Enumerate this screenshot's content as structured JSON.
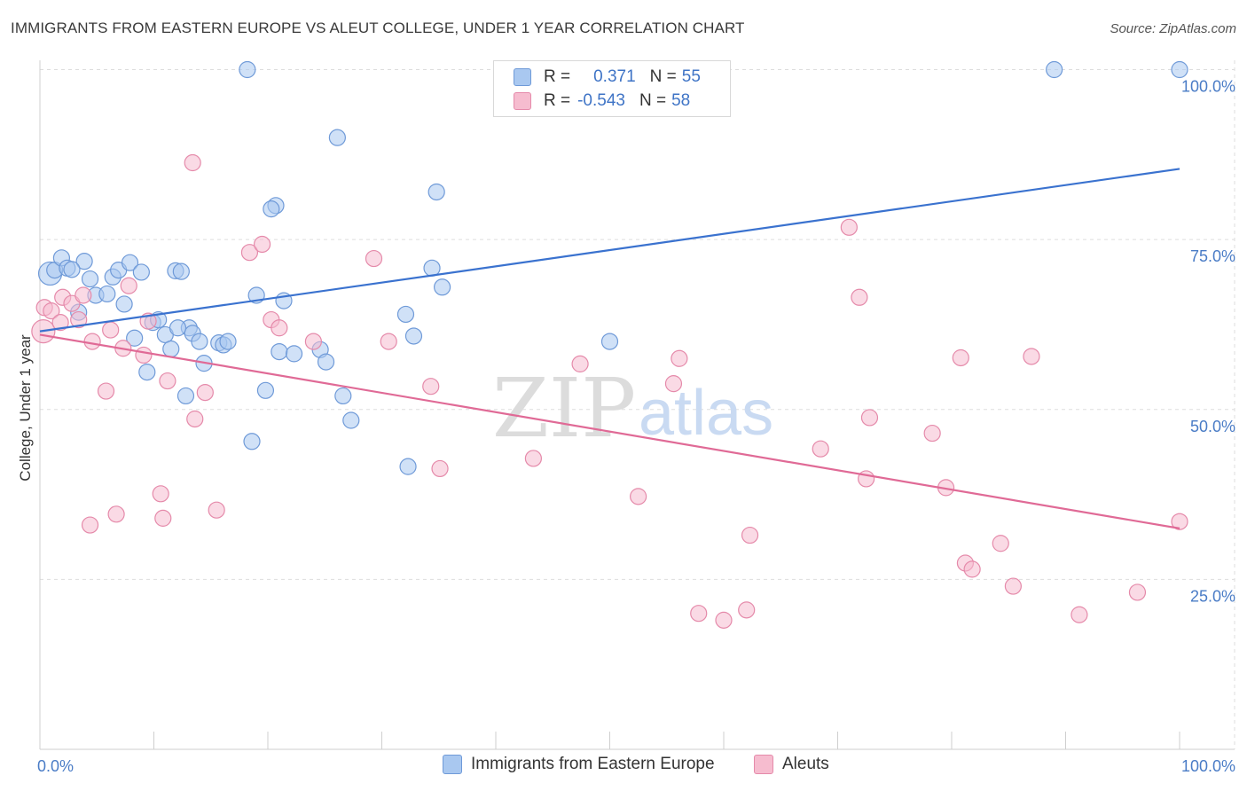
{
  "header": {
    "title": "IMMIGRANTS FROM EASTERN EUROPE VS ALEUT COLLEGE, UNDER 1 YEAR CORRELATION CHART",
    "source": "Source: ZipAtlas.com"
  },
  "watermark": {
    "zip": "ZIP",
    "atlas": "atlas"
  },
  "legend_stats": [
    {
      "r_label": "R =",
      "r_value": "0.371",
      "n_label": "N =",
      "n_value": "55"
    },
    {
      "r_label": "R =",
      "r_value": "-0.543",
      "n_label": "N =",
      "n_value": "58"
    }
  ],
  "colors": {
    "blue_fill": "#a9c8f0",
    "blue_stroke": "#6f9ad8",
    "blue_line": "#3a72cf",
    "pink_fill": "#f6bccf",
    "pink_stroke": "#e58aaa",
    "pink_line": "#e06a96",
    "grid": "#dddddd",
    "axis_text": "#4a7cc6"
  },
  "chart_data": {
    "type": "scatter",
    "title": "IMMIGRANTS FROM EASTERN EUROPE VS ALEUT COLLEGE, UNDER 1 YEAR CORRELATION CHART",
    "xlabel": "",
    "ylabel": "College, Under 1 year",
    "xlim": [
      0,
      100
    ],
    "ylim": [
      0,
      102
    ],
    "x_ticks": [
      "0.0%",
      "100.0%"
    ],
    "y_ticks": [
      {
        "value": 25,
        "label": "25.0%"
      },
      {
        "value": 50,
        "label": "50.0%"
      },
      {
        "value": 75,
        "label": "75.0%"
      },
      {
        "value": 100,
        "label": "100.0%"
      }
    ],
    "grid": true,
    "legend_position": "bottom",
    "series": [
      {
        "name": "Immigrants from Eastern Europe",
        "color": "#a9c8f0",
        "trend": {
          "x": [
            0,
            100
          ],
          "y": [
            61.5,
            85.4
          ]
        },
        "points": [
          {
            "x": 0.9,
            "y": 70.0,
            "big": true
          },
          {
            "x": 1.3,
            "y": 70.5
          },
          {
            "x": 1.9,
            "y": 72.3
          },
          {
            "x": 2.4,
            "y": 70.8
          },
          {
            "x": 3.4,
            "y": 64.3
          },
          {
            "x": 3.9,
            "y": 71.8
          },
          {
            "x": 4.4,
            "y": 69.2
          },
          {
            "x": 4.9,
            "y": 66.8
          },
          {
            "x": 5.9,
            "y": 67.0
          },
          {
            "x": 6.4,
            "y": 69.5
          },
          {
            "x": 6.9,
            "y": 70.5
          },
          {
            "x": 7.4,
            "y": 65.5
          },
          {
            "x": 7.9,
            "y": 71.6
          },
          {
            "x": 8.3,
            "y": 60.5
          },
          {
            "x": 8.9,
            "y": 70.2
          },
          {
            "x": 9.4,
            "y": 55.5
          },
          {
            "x": 9.9,
            "y": 62.8
          },
          {
            "x": 10.4,
            "y": 63.2
          },
          {
            "x": 11.0,
            "y": 61.0
          },
          {
            "x": 11.5,
            "y": 58.9
          },
          {
            "x": 11.9,
            "y": 70.4
          },
          {
            "x": 12.4,
            "y": 70.3
          },
          {
            "x": 12.8,
            "y": 52.0
          },
          {
            "x": 13.1,
            "y": 62.0
          },
          {
            "x": 13.4,
            "y": 61.2
          },
          {
            "x": 14.0,
            "y": 60.0
          },
          {
            "x": 14.4,
            "y": 56.8
          },
          {
            "x": 15.7,
            "y": 59.8
          },
          {
            "x": 16.1,
            "y": 59.5
          },
          {
            "x": 16.5,
            "y": 60.0
          },
          {
            "x": 18.2,
            "y": 100.0
          },
          {
            "x": 18.6,
            "y": 45.3
          },
          {
            "x": 19.0,
            "y": 66.8
          },
          {
            "x": 19.8,
            "y": 52.8
          },
          {
            "x": 20.7,
            "y": 80.0
          },
          {
            "x": 21.0,
            "y": 58.5
          },
          {
            "x": 21.4,
            "y": 66.0
          },
          {
            "x": 22.3,
            "y": 58.2
          },
          {
            "x": 24.6,
            "y": 58.8
          },
          {
            "x": 25.1,
            "y": 57.0
          },
          {
            "x": 26.1,
            "y": 90.0
          },
          {
            "x": 26.6,
            "y": 52.0
          },
          {
            "x": 27.3,
            "y": 48.4
          },
          {
            "x": 32.1,
            "y": 64.0
          },
          {
            "x": 32.3,
            "y": 41.6
          },
          {
            "x": 32.8,
            "y": 60.8
          },
          {
            "x": 34.4,
            "y": 70.8
          },
          {
            "x": 34.8,
            "y": 82.0
          },
          {
            "x": 35.3,
            "y": 68.0
          },
          {
            "x": 50.0,
            "y": 60.0
          },
          {
            "x": 89.0,
            "y": 100.0
          },
          {
            "x": 100.0,
            "y": 100.0
          },
          {
            "x": 2.8,
            "y": 70.6
          },
          {
            "x": 12.1,
            "y": 62.0
          },
          {
            "x": 20.3,
            "y": 79.5
          }
        ]
      },
      {
        "name": "Aleuts",
        "color": "#f6bccf",
        "trend": {
          "x": [
            0,
            100
          ],
          "y": [
            61.0,
            32.5
          ]
        },
        "points": [
          {
            "x": 0.3,
            "y": 61.5,
            "big": true
          },
          {
            "x": 0.4,
            "y": 65.0
          },
          {
            "x": 1.0,
            "y": 64.5
          },
          {
            "x": 1.8,
            "y": 62.8
          },
          {
            "x": 2.0,
            "y": 66.5
          },
          {
            "x": 2.8,
            "y": 65.6
          },
          {
            "x": 3.4,
            "y": 63.2
          },
          {
            "x": 3.8,
            "y": 66.8
          },
          {
            "x": 4.4,
            "y": 33.0
          },
          {
            "x": 4.6,
            "y": 60.0
          },
          {
            "x": 5.8,
            "y": 52.7
          },
          {
            "x": 6.2,
            "y": 61.7
          },
          {
            "x": 6.7,
            "y": 34.6
          },
          {
            "x": 7.3,
            "y": 59.0
          },
          {
            "x": 7.8,
            "y": 68.2
          },
          {
            "x": 9.1,
            "y": 58.0
          },
          {
            "x": 9.5,
            "y": 63.0
          },
          {
            "x": 10.6,
            "y": 37.6
          },
          {
            "x": 10.8,
            "y": 34.0
          },
          {
            "x": 11.2,
            "y": 54.2
          },
          {
            "x": 13.4,
            "y": 86.3
          },
          {
            "x": 13.6,
            "y": 48.6
          },
          {
            "x": 14.5,
            "y": 52.5
          },
          {
            "x": 15.5,
            "y": 35.2
          },
          {
            "x": 18.4,
            "y": 73.1
          },
          {
            "x": 19.5,
            "y": 74.3
          },
          {
            "x": 20.3,
            "y": 63.2
          },
          {
            "x": 21.0,
            "y": 62.0
          },
          {
            "x": 24.0,
            "y": 60.0
          },
          {
            "x": 29.3,
            "y": 72.2
          },
          {
            "x": 30.6,
            "y": 60.0
          },
          {
            "x": 34.3,
            "y": 53.4
          },
          {
            "x": 35.1,
            "y": 41.3
          },
          {
            "x": 43.3,
            "y": 42.8
          },
          {
            "x": 47.4,
            "y": 56.7
          },
          {
            "x": 52.5,
            "y": 37.2
          },
          {
            "x": 55.6,
            "y": 53.8
          },
          {
            "x": 56.1,
            "y": 57.5
          },
          {
            "x": 57.8,
            "y": 20.0
          },
          {
            "x": 60.0,
            "y": 19.0
          },
          {
            "x": 62.0,
            "y": 20.5
          },
          {
            "x": 62.3,
            "y": 31.5
          },
          {
            "x": 68.5,
            "y": 44.2
          },
          {
            "x": 71.0,
            "y": 76.8
          },
          {
            "x": 71.9,
            "y": 66.5
          },
          {
            "x": 72.5,
            "y": 39.8
          },
          {
            "x": 72.8,
            "y": 48.8
          },
          {
            "x": 78.3,
            "y": 46.5
          },
          {
            "x": 79.5,
            "y": 38.5
          },
          {
            "x": 80.8,
            "y": 57.6
          },
          {
            "x": 81.2,
            "y": 27.4
          },
          {
            "x": 81.8,
            "y": 26.5
          },
          {
            "x": 84.3,
            "y": 30.3
          },
          {
            "x": 85.4,
            "y": 24.0
          },
          {
            "x": 87.0,
            "y": 57.8
          },
          {
            "x": 91.2,
            "y": 19.8
          },
          {
            "x": 96.3,
            "y": 23.1
          },
          {
            "x": 100.0,
            "y": 33.5
          }
        ]
      }
    ]
  }
}
